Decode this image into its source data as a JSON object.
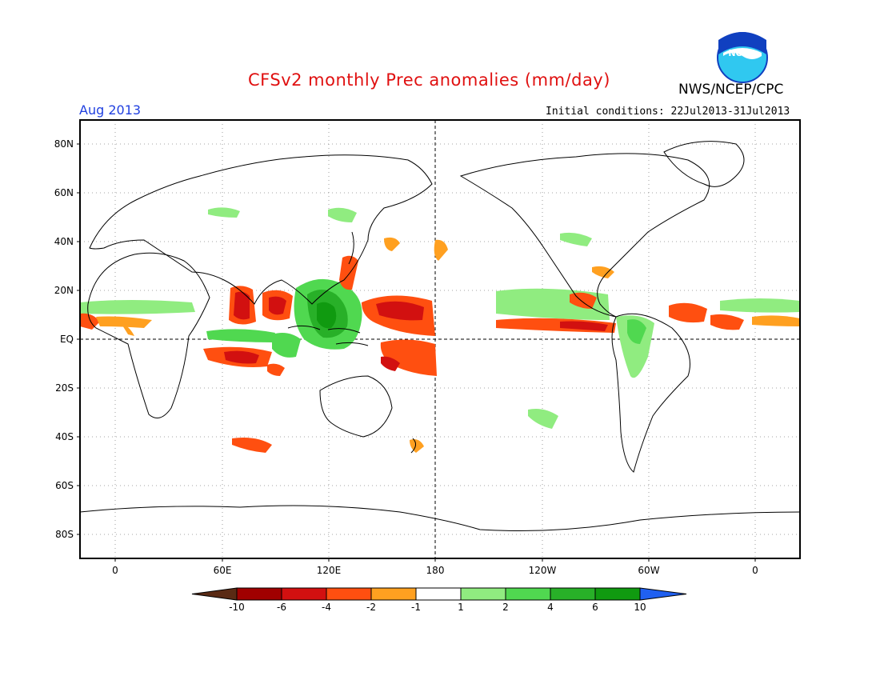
{
  "title": "CFSv2 monthly Prec anomalies (mm/day)",
  "agency": "NWS/NCEP/CPC",
  "logo_text": "NOAA",
  "valid_month": "Aug 2013",
  "initial_conditions": "Initial conditions: 22Jul2013-31Jul2013",
  "map": {
    "lat_labels": [
      "80N",
      "60N",
      "40N",
      "20N",
      "EQ",
      "20S",
      "40S",
      "60S",
      "80S"
    ],
    "lon_labels": [
      "0",
      "60E",
      "120E",
      "180",
      "120W",
      "60W",
      "0"
    ]
  },
  "legend": {
    "labels": [
      "-10",
      "-6",
      "-4",
      "-2",
      "-1",
      "1",
      "2",
      "4",
      "6",
      "10"
    ],
    "colors": [
      "#5a2a14",
      "#a00000",
      "#d21010",
      "#ff4f10",
      "#ffa020",
      "#ffffff",
      "#90ec80",
      "#50d850",
      "#28b028",
      "#109a10",
      "#2060f0"
    ]
  },
  "colors": {
    "title": "#e01010",
    "month": "#2040e0",
    "noaa_blue": "#1040c0",
    "noaa_cyan": "#30c8f0"
  }
}
